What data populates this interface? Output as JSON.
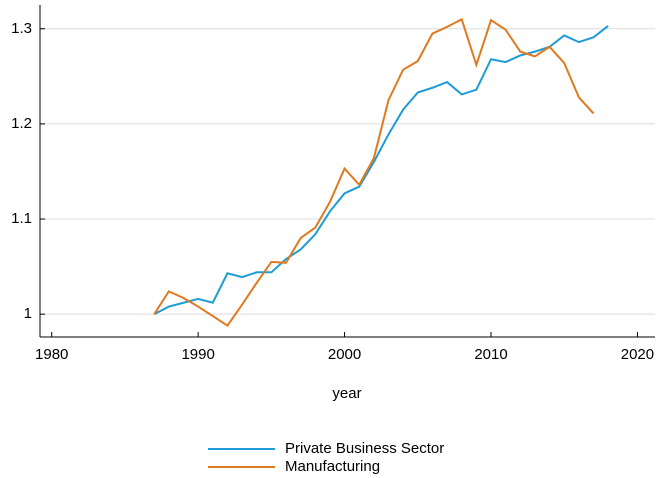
{
  "chart_data": {
    "type": "line",
    "x_label": "year",
    "x": [
      1987,
      1988,
      1989,
      1990,
      1991,
      1992,
      1993,
      1994,
      1995,
      1996,
      1997,
      1998,
      1999,
      2000,
      2001,
      2002,
      2003,
      2004,
      2005,
      2006,
      2007,
      2008,
      2009,
      2010,
      2011,
      2012,
      2013,
      2014,
      2015,
      2016,
      2017,
      2018
    ],
    "series": [
      {
        "name": "Private Business Sector",
        "color": "#1f9bd7",
        "values": [
          1.0,
          1.008,
          1.012,
          1.016,
          1.012,
          1.043,
          1.039,
          1.044,
          1.044,
          1.058,
          1.068,
          1.084,
          1.108,
          1.127,
          1.134,
          1.16,
          1.189,
          1.215,
          1.233,
          1.238,
          1.244,
          1.231,
          1.236,
          1.268,
          1.265,
          1.272,
          1.276,
          1.281,
          1.293,
          1.286,
          1.291,
          1.303
        ]
      },
      {
        "name": "Manufacturing",
        "color": "#e07a1f",
        "values": [
          1.0,
          1.024,
          1.017,
          1.008,
          0.998,
          0.988,
          1.01,
          1.033,
          1.055,
          1.054,
          1.08,
          1.091,
          1.118,
          1.153,
          1.136,
          1.164,
          1.225,
          1.257,
          1.266,
          1.295,
          1.302,
          1.31,
          1.262,
          1.309,
          1.299,
          1.276,
          1.271,
          1.281,
          1.264,
          1.228,
          1.211,
          null
        ]
      }
    ],
    "xlim": [
      1979.2,
      2021.2
    ],
    "xticks": [
      1980,
      1990,
      2000,
      2010,
      2020
    ],
    "ylim": [
      0.976,
      1.325
    ],
    "yticks": [
      1,
      1.1,
      1.2,
      1.3
    ],
    "grid": true,
    "legend": "bottom"
  }
}
